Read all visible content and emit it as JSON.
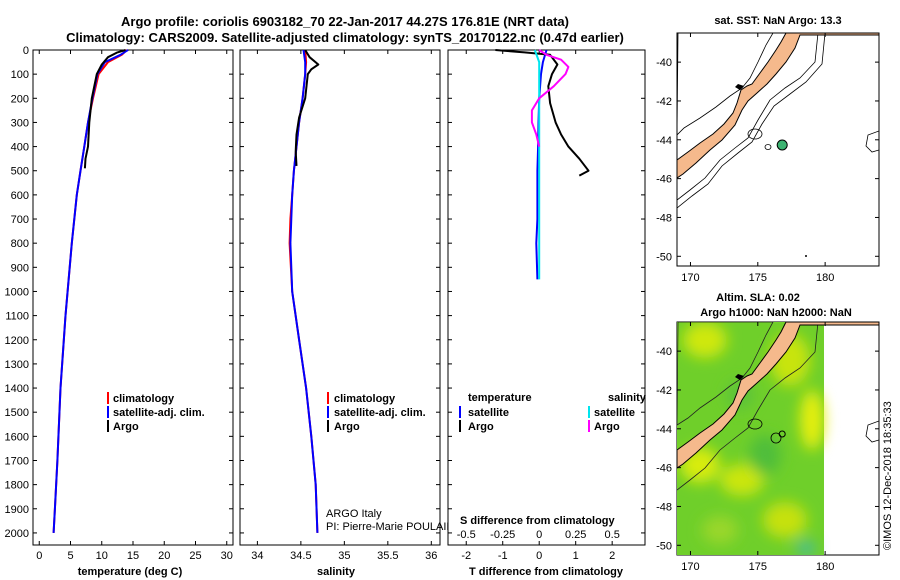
{
  "title": {
    "line1": "Argo profile: coriolis 6903182_70 22-Jan-2017 44.27S 176.81E (NRT data)",
    "line2": "Climatology: CARS2009. Satellite-adjusted climatology: synTS_20170122.nc (0.47d earlier)"
  },
  "colors": {
    "climatology": "#ff0000",
    "satellite": "#0000ff",
    "argo": "#000000",
    "sat_salinity": "#00e5ee",
    "argo_salinity": "#ff00ff",
    "land": "#f5b98c"
  },
  "credits": {
    "institution": "ARGO Italy",
    "pi": "PI: Pierre-Marie POULAIN",
    "footer": "©IMOS 12-Dec-2018 18:35:33"
  },
  "chart_data": [
    {
      "id": "temperature-panel",
      "type": "line",
      "xlabel": "temperature (deg C)",
      "ylabel": "",
      "xlim": [
        -1,
        31
      ],
      "ylim": [
        2050,
        0
      ],
      "xticks": [
        0,
        5,
        10,
        15,
        20,
        25,
        30
      ],
      "yticks": [
        0,
        100,
        200,
        300,
        400,
        500,
        600,
        700,
        800,
        900,
        1000,
        1100,
        1200,
        1300,
        1400,
        1500,
        1600,
        1700,
        1800,
        1900,
        2000
      ],
      "legend": [
        "climatology",
        "satellite-adj. clim.",
        "Argo"
      ],
      "series": [
        {
          "name": "climatology",
          "color": "#ff0000",
          "x": [
            14.0,
            13.2,
            11.0,
            9.5,
            8.6,
            7.8,
            7.2,
            6.6,
            6.0,
            5.2,
            4.2,
            3.4,
            2.9,
            2.5,
            2.3
          ],
          "y": [
            0,
            20,
            50,
            100,
            200,
            300,
            400,
            500,
            600,
            800,
            1100,
            1400,
            1700,
            1900,
            2000
          ]
        },
        {
          "name": "satellite-adj. clim.",
          "color": "#0000ff",
          "x": [
            14.2,
            13.0,
            10.5,
            9.3,
            8.5,
            7.8,
            7.2,
            6.6,
            6.0,
            5.2,
            4.2,
            3.4,
            2.9,
            2.5,
            2.3
          ],
          "y": [
            0,
            20,
            50,
            100,
            200,
            300,
            400,
            500,
            600,
            800,
            1100,
            1400,
            1700,
            1900,
            2000
          ]
        },
        {
          "name": "Argo",
          "color": "#000000",
          "x": [
            13.8,
            12.5,
            11.0,
            10.0,
            9.2,
            8.4,
            8.0,
            7.8,
            7.4,
            7.3
          ],
          "y": [
            0,
            10,
            30,
            60,
            100,
            200,
            300,
            400,
            450,
            490
          ]
        }
      ]
    },
    {
      "id": "salinity-panel",
      "type": "line",
      "xlabel": "salinity",
      "ylabel": "",
      "xlim": [
        33.8,
        36.1
      ],
      "ylim": [
        2050,
        0
      ],
      "xticks": [
        34,
        34.5,
        35,
        35.5,
        36
      ],
      "legend": [
        "climatology",
        "satellite-adj. clim.",
        "Argo"
      ],
      "series": [
        {
          "name": "climatology",
          "color": "#ff0000",
          "x": [
            34.55,
            34.56,
            34.55,
            34.52,
            34.48,
            34.45,
            34.42,
            34.4,
            34.38,
            34.37,
            34.4,
            34.48,
            34.56,
            34.62,
            34.67,
            34.69
          ],
          "y": [
            0,
            50,
            100,
            200,
            300,
            400,
            500,
            600,
            700,
            800,
            1000,
            1200,
            1400,
            1600,
            1800,
            2000
          ]
        },
        {
          "name": "satellite-adj. clim.",
          "color": "#0000ff",
          "x": [
            34.53,
            34.55,
            34.55,
            34.52,
            34.48,
            34.45,
            34.42,
            34.4,
            34.39,
            34.38,
            34.4,
            34.48,
            34.56,
            34.62,
            34.67,
            34.69
          ],
          "y": [
            0,
            50,
            100,
            200,
            300,
            400,
            500,
            600,
            700,
            800,
            1000,
            1200,
            1400,
            1600,
            1800,
            2000
          ]
        },
        {
          "name": "Argo",
          "color": "#000000",
          "x": [
            34.55,
            34.6,
            34.7,
            34.62,
            34.58,
            34.55,
            34.48,
            34.45,
            34.44,
            34.45
          ],
          "y": [
            0,
            30,
            60,
            80,
            100,
            200,
            280,
            350,
            420,
            480
          ]
        }
      ]
    },
    {
      "id": "difference-panel",
      "type": "line",
      "xlabel": "T difference from climatology",
      "title": "S difference from climatology",
      "xlim": [
        -2.5,
        2.9
      ],
      "ylim": [
        2050,
        0
      ],
      "xticks": [
        -2,
        -1,
        0,
        1,
        2
      ],
      "sticks": [
        -0.5,
        -0.25,
        0,
        0.25,
        0.5
      ],
      "s_scale": 4,
      "legend": {
        "temperature_header": "temperature",
        "salinity_header": "salinity",
        "t_sat": "satellite",
        "t_argo": "Argo",
        "s_sat": "satellite",
        "s_argo": "Argo"
      },
      "series": [
        {
          "name": "T satellite",
          "color": "#0000ff",
          "scale": 1,
          "x": [
            0.2,
            0.1,
            0.05,
            0.0,
            -0.02,
            -0.03,
            -0.05,
            -0.05,
            -0.05,
            -0.08,
            -0.05
          ],
          "y": [
            0,
            50,
            100,
            200,
            300,
            400,
            500,
            600,
            700,
            800,
            950
          ]
        },
        {
          "name": "T Argo",
          "color": "#000000",
          "scale": 1,
          "x": [
            -1.2,
            -0.8,
            -0.4,
            0.3,
            0.5,
            0.35,
            0.25,
            0.3,
            0.45,
            0.6,
            0.8,
            1.1,
            1.35,
            1.1
          ],
          "y": [
            0,
            5,
            10,
            20,
            60,
            100,
            150,
            220,
            300,
            350,
            400,
            450,
            500,
            520
          ]
        },
        {
          "name": "S satellite",
          "color": "#00e5ee",
          "scale": 4,
          "x": [
            -0.03,
            0.0,
            0.0,
            0.0,
            0.0,
            0.0,
            0.0,
            0.0,
            0.0,
            0.0
          ],
          "y": [
            0,
            50,
            100,
            200,
            300,
            400,
            500,
            600,
            800,
            950
          ]
        },
        {
          "name": "S Argo",
          "color": "#ff00ff",
          "scale": 4,
          "x": [
            0.0,
            0.05,
            0.15,
            0.2,
            0.18,
            0.1,
            0.0,
            -0.05,
            -0.05,
            -0.02,
            0.0
          ],
          "y": [
            0,
            20,
            40,
            70,
            100,
            150,
            200,
            250,
            300,
            350,
            400
          ]
        }
      ]
    },
    {
      "id": "sst-map",
      "type": "scatter",
      "title": "sat. SST: NaN Argo: 13.3",
      "xlim": [
        169,
        184
      ],
      "ylim": [
        -50.5,
        -38.5
      ],
      "xticks": [
        170,
        175,
        180
      ],
      "yticks": [
        -40,
        -42,
        -44,
        -46,
        -48,
        -50
      ],
      "argo_position": {
        "lon": 176.81,
        "lat": -44.27,
        "color": "#3cb371"
      }
    },
    {
      "id": "sla-map",
      "type": "heatmap",
      "title_line1": "Altim. SLA: 0.02",
      "title_line2": "Argo h1000: NaN h2000: NaN",
      "xlim": [
        169,
        184
      ],
      "ylim": [
        -50.5,
        -38.5
      ],
      "xticks": [
        170,
        175,
        180
      ],
      "yticks": [
        -40,
        -42,
        -44,
        -46,
        -48,
        -50
      ],
      "data_lon_max": 180,
      "argo_position": {
        "lon": 176.81,
        "lat": -44.27
      }
    }
  ]
}
